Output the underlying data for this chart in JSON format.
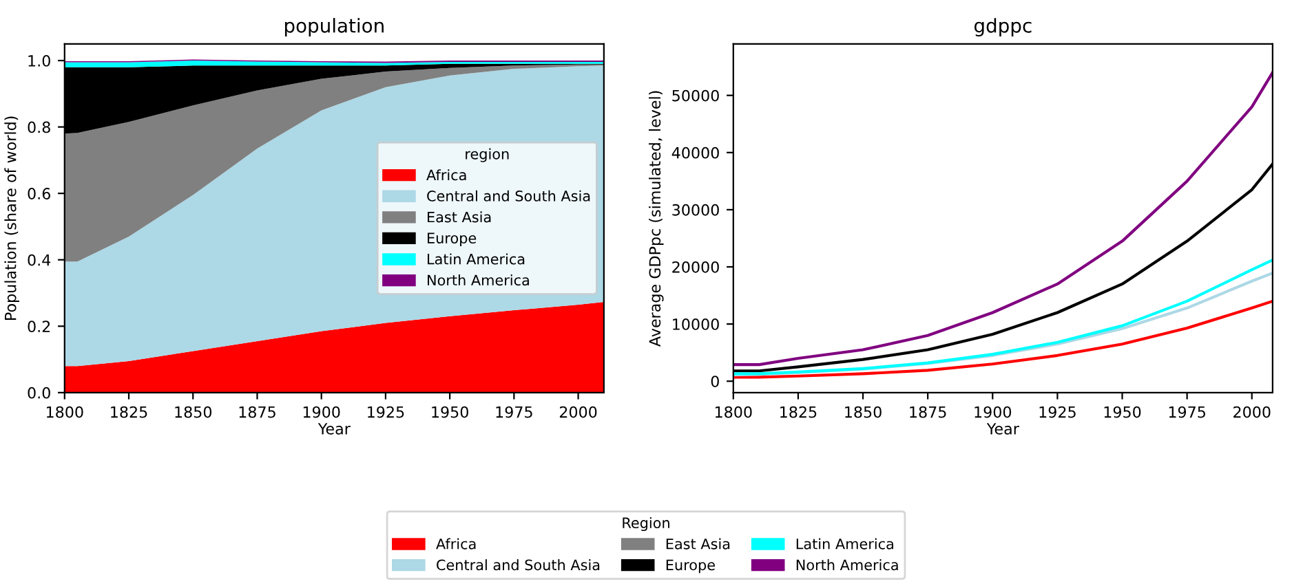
{
  "chart_data": [
    {
      "type": "area",
      "stacked": true,
      "title": "population",
      "xlabel": "Year",
      "ylabel": "Population (share of world)",
      "legend_title": "region",
      "legend": "center right",
      "x": [
        1800,
        1805,
        1825,
        1850,
        1875,
        1900,
        1925,
        1950,
        1975,
        2000,
        2010
      ],
      "xlim": [
        1800,
        2010
      ],
      "xticks": [
        1800,
        1825,
        1850,
        1875,
        1900,
        1925,
        1950,
        1975,
        2000
      ],
      "ylim": [
        0,
        1.05
      ],
      "yticks": [
        {
          "value": 0,
          "label": "0.0"
        },
        0.2,
        0.4,
        0.6,
        0.8,
        {
          "value": 1,
          "label": "1.0"
        }
      ],
      "series": [
        {
          "name": "Africa",
          "color": "#ff0000",
          "values": [
            0.08,
            0.08,
            0.095,
            0.125,
            0.155,
            0.185,
            0.21,
            0.23,
            0.248,
            0.265,
            0.273
          ]
        },
        {
          "name": "Central and South Asia",
          "color": "#add8e6",
          "values": [
            0.315,
            0.315,
            0.375,
            0.47,
            0.58,
            0.665,
            0.71,
            0.725,
            0.727,
            0.718,
            0.712
          ]
        },
        {
          "name": "East Asia",
          "color": "#808080",
          "values": [
            0.385,
            0.387,
            0.345,
            0.27,
            0.175,
            0.095,
            0.047,
            0.023,
            0.01,
            0.005,
            0.003
          ]
        },
        {
          "name": "Europe",
          "color": "#000000",
          "values": [
            0.2,
            0.198,
            0.165,
            0.12,
            0.075,
            0.04,
            0.018,
            0.012,
            0.005,
            0.002,
            0.002
          ]
        },
        {
          "name": "Latin America",
          "color": "#00ffff",
          "values": [
            0.015,
            0.015,
            0.015,
            0.015,
            0.012,
            0.01,
            0.008,
            0.006,
            0.006,
            0.006,
            0.006
          ]
        },
        {
          "name": "North America",
          "color": "#800080",
          "values": [
            0.003,
            0.003,
            0.003,
            0.003,
            0.003,
            0.003,
            0.004,
            0.004,
            0.004,
            0.004,
            0.004
          ]
        }
      ]
    },
    {
      "type": "line",
      "title": "gdppc",
      "xlabel": "Year",
      "ylabel": "Average GDPpc (simulated, level)",
      "legend_title": "Region",
      "legend": "bottom",
      "x": [
        1800,
        1810,
        1825,
        1850,
        1875,
        1900,
        1925,
        1950,
        1975,
        2000,
        2008
      ],
      "xlim": [
        1800,
        2008
      ],
      "xticks": [
        1800,
        1825,
        1850,
        1875,
        1900,
        1925,
        1950,
        1975,
        2000
      ],
      "ylim": [
        -2000,
        59000
      ],
      "yticks": [
        0,
        10000,
        20000,
        30000,
        40000,
        50000
      ],
      "series": [
        {
          "name": "Africa",
          "color": "#ff0000",
          "values": [
            700,
            700,
            900,
            1300,
            1900,
            3000,
            4500,
            6500,
            9300,
            12800,
            14000
          ]
        },
        {
          "name": "Central and South Asia",
          "color": "#add8e6",
          "values": [
            1100,
            1200,
            1500,
            2100,
            3100,
            4500,
            6500,
            9200,
            12800,
            17500,
            18900
          ]
        },
        {
          "name": "East Asia",
          "color": "#808080",
          "values": [
            null,
            null,
            null,
            null,
            null,
            null,
            null,
            null,
            null,
            null,
            null
          ]
        },
        {
          "name": "Europe",
          "color": "#000000",
          "values": [
            1800,
            1800,
            2500,
            3800,
            5500,
            8200,
            12000,
            17000,
            24500,
            33500,
            38000
          ]
        },
        {
          "name": "Latin America",
          "color": "#00ffff",
          "values": [
            1300,
            1300,
            1600,
            2200,
            3200,
            4700,
            6800,
            9700,
            14000,
            19500,
            21200
          ]
        },
        {
          "name": "North America",
          "color": "#800080",
          "values": [
            2900,
            2900,
            4000,
            5500,
            8000,
            12000,
            17000,
            24500,
            35000,
            48000,
            54000
          ]
        }
      ]
    }
  ]
}
